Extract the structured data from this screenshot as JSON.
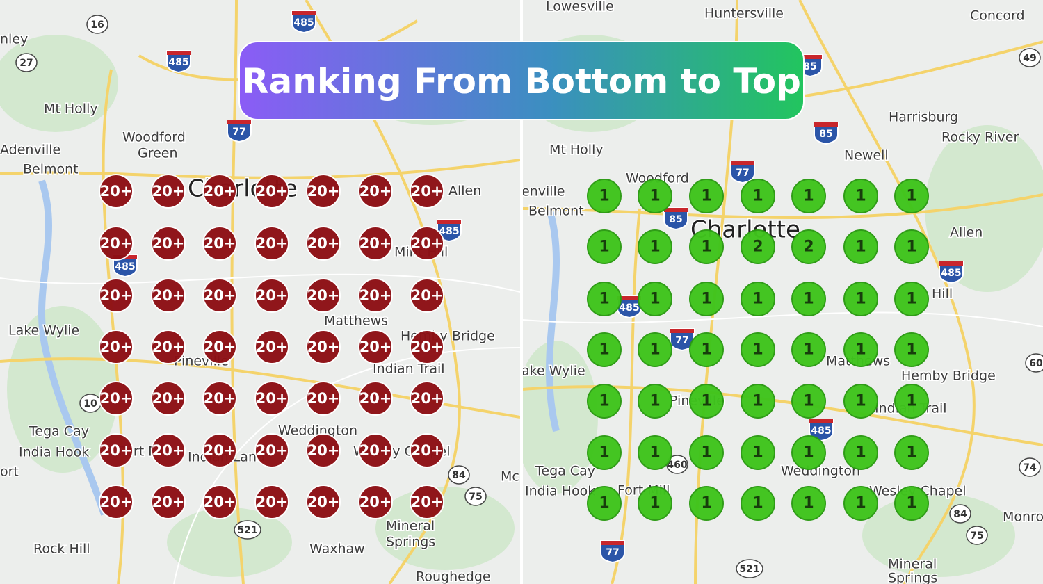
{
  "title": "Ranking From Bottom to Top",
  "left_map": {
    "places": [
      "nley",
      "Mt Holly",
      "Woodford",
      "Green",
      "Adenville",
      "Belmont",
      "Charlotte",
      "Allen",
      "Mint Hill",
      "Matthews",
      "Hemby Bridge",
      "Indian Trail",
      "Pineville",
      "Lake Wylie",
      "Tega Cay",
      "India Hook",
      "Fort Mill",
      "Indian Land",
      "Weddington",
      "Wesley Chapel",
      "ort",
      "Mc",
      "Rock Hill",
      "Waxhaw",
      "Mineral",
      "Springs",
      "Roughedge"
    ],
    "shields": [
      "16",
      "27",
      "485",
      "485",
      "77",
      "485",
      "485",
      "10",
      "84",
      "75",
      "521"
    ],
    "grid": [
      [
        "20+",
        "20+",
        "20+",
        "20+",
        "20+",
        "20+",
        "20+"
      ],
      [
        "20+",
        "20+",
        "20+",
        "20+",
        "20+",
        "20+",
        "20+"
      ],
      [
        "20+",
        "20+",
        "20+",
        "20+",
        "20+",
        "20+",
        "20+"
      ],
      [
        "20+",
        "20+",
        "20+",
        "20+",
        "20+",
        "20+",
        "20+"
      ],
      [
        "20+",
        "20+",
        "20+",
        "20+",
        "20+",
        "20+",
        "20+"
      ],
      [
        "20+",
        "20+",
        "20+",
        "20+",
        "20+",
        "20+",
        "20+"
      ],
      [
        "20+",
        "20+",
        "20+",
        "20+",
        "20+",
        "20+",
        "20+"
      ]
    ]
  },
  "right_map": {
    "places": [
      "Lowesville",
      "Huntersville",
      "Concord",
      "Harrisburg",
      "Rocky River",
      "Newell",
      "Mt Holly",
      "Woodford",
      "enville",
      "Belmont",
      "Charlotte",
      "Allen",
      "Hill",
      "Matthews",
      "Hemby Bridge",
      "Indian Trail",
      "ake Wylie",
      "Pineville",
      "Tega Cay",
      "India Hook",
      "Fort Mill",
      "Weddington",
      "Wesley Chapel",
      "Monroe",
      "Mineral",
      "Springs"
    ],
    "shields": [
      "85",
      "85",
      "77",
      "85",
      "485",
      "77",
      "485",
      "485",
      "460",
      "49",
      "74",
      "84",
      "75",
      "521",
      "77",
      "60"
    ],
    "grid": [
      [
        1,
        1,
        1,
        1,
        1,
        1,
        1
      ],
      [
        1,
        1,
        1,
        2,
        2,
        1,
        1
      ],
      [
        1,
        1,
        1,
        1,
        1,
        1,
        1
      ],
      [
        1,
        1,
        1,
        1,
        1,
        1,
        1
      ],
      [
        1,
        1,
        1,
        1,
        1,
        1,
        1
      ],
      [
        1,
        1,
        1,
        1,
        1,
        1,
        1
      ],
      [
        1,
        1,
        1,
        1,
        1,
        1,
        1
      ]
    ]
  }
}
